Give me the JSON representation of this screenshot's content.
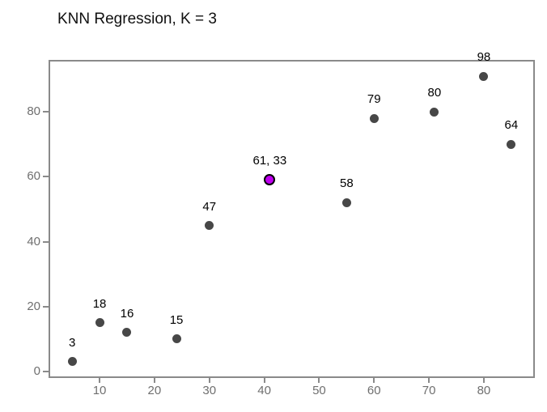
{
  "title": "KNN Regression, K = 3",
  "colors": {
    "background": "#ffffff",
    "spine": "#8a8a8a",
    "tick_label": "#6f6f6f",
    "title": "#101010",
    "train_point": "#474747",
    "query_point_fill": "#bf00ef",
    "query_point_edge": "#000000",
    "annotation": "#000000"
  },
  "chart_data": {
    "type": "scatter",
    "title": "KNN Regression, K = 3",
    "xlabel": "",
    "ylabel": "",
    "xlim": [
      1,
      89
    ],
    "ylim": [
      -1.5,
      95.5
    ],
    "xticks": [
      10,
      20,
      30,
      40,
      50,
      60,
      70,
      80
    ],
    "yticks": [
      0,
      20,
      40,
      60,
      80
    ],
    "grid": false,
    "legend": "none",
    "series": [
      {
        "name": "training-points",
        "marker": "circle",
        "color": "#474747",
        "points": [
          {
            "x": 5,
            "y": 3,
            "label": "3"
          },
          {
            "x": 10,
            "y": 15,
            "label": "18"
          },
          {
            "x": 15,
            "y": 12,
            "label": "16"
          },
          {
            "x": 24,
            "y": 10,
            "label": "15"
          },
          {
            "x": 30,
            "y": 45,
            "label": "47"
          },
          {
            "x": 55,
            "y": 52,
            "label": "58"
          },
          {
            "x": 60,
            "y": 78,
            "label": "79"
          },
          {
            "x": 71,
            "y": 80,
            "label": "80"
          },
          {
            "x": 80,
            "y": 91,
            "label": "98"
          },
          {
            "x": 85,
            "y": 70,
            "label": "64"
          }
        ]
      },
      {
        "name": "query-point",
        "marker": "circle",
        "color": "#bf00ef",
        "edge_color": "#000000",
        "points": [
          {
            "x": 41,
            "y": 59,
            "label": "61, 33"
          }
        ]
      }
    ]
  }
}
